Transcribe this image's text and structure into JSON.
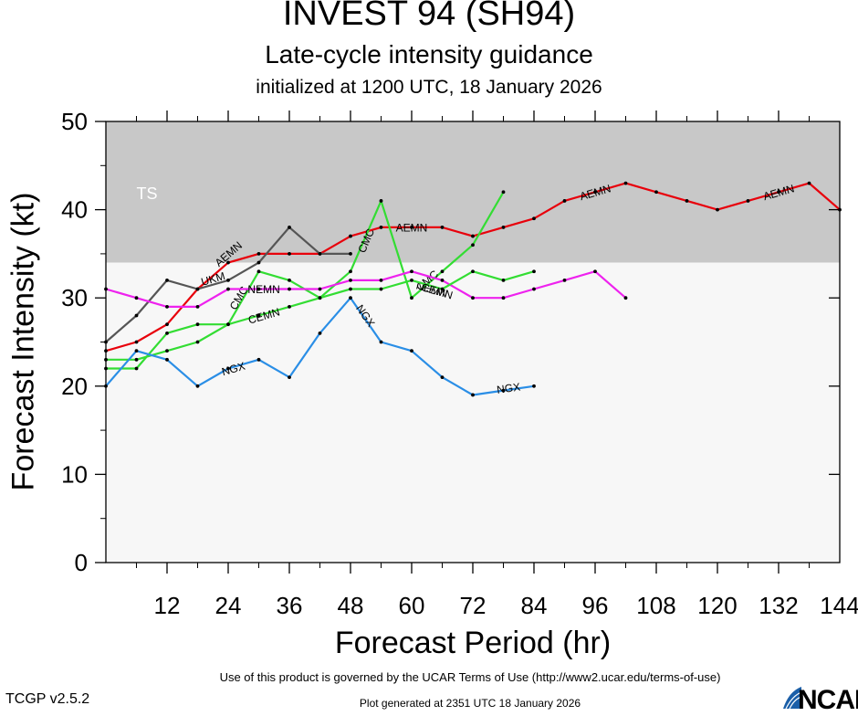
{
  "header": {
    "title": "INVEST 94 (SH94)",
    "subtitle": "Late-cycle intensity guidance",
    "init": "initialized at 1200 UTC, 18 January 2026"
  },
  "footer": {
    "terms": "Use of this product is governed by the UCAR Terms of Use (http://www2.ucar.edu/terms-of-use)",
    "version": "TCGP v2.5.2",
    "generated": "Plot generated at 2351 UTC   18 January 2026",
    "logo_text": "NCAR"
  },
  "chart_data": {
    "type": "line",
    "xlabel": "Forecast Period (hr)",
    "ylabel": "Forecast Intensity (kt)",
    "xlim": [
      0,
      144
    ],
    "ylim": [
      0,
      50
    ],
    "xticks": [
      12,
      24,
      36,
      48,
      60,
      72,
      84,
      96,
      108,
      120,
      132,
      144
    ],
    "yticks": [
      0,
      10,
      20,
      30,
      40,
      50
    ],
    "bands": [
      {
        "label": "TS",
        "from": 34,
        "to": 50,
        "color": "#c8c8c8"
      },
      {
        "label": "",
        "from": 0,
        "to": 34,
        "color": "#f7f7f7"
      }
    ],
    "series": [
      {
        "name": "AEMN",
        "color": "#e8000b",
        "x": [
          0,
          6,
          12,
          18,
          24,
          30,
          36,
          42,
          48,
          54,
          60,
          66,
          72,
          78,
          84,
          90,
          96,
          102,
          108,
          114,
          120,
          126,
          132,
          138,
          144
        ],
        "y": [
          24,
          25,
          27,
          31,
          34,
          35,
          35,
          35,
          37,
          38,
          38,
          38,
          37,
          38,
          39,
          41,
          42,
          43,
          42,
          41,
          40,
          41,
          42,
          43,
          40
        ],
        "labels": [
          {
            "x": 24,
            "y": 35
          },
          {
            "x": 60,
            "y": 38
          },
          {
            "x": 96,
            "y": 42
          },
          {
            "x": 132,
            "y": 42
          }
        ]
      },
      {
        "name": "UKM",
        "color": "#555555",
        "x": [
          0,
          6,
          12,
          18,
          24,
          30,
          36,
          42,
          48
        ],
        "y": [
          25,
          28,
          32,
          31,
          32,
          34,
          38,
          35,
          35
        ],
        "labels": [
          {
            "x": 21,
            "y": 32.2
          }
        ]
      },
      {
        "name": "CMC",
        "color": "#33dd33",
        "x": [
          0,
          6,
          12,
          18,
          24,
          30,
          36,
          42,
          48,
          54,
          60,
          66,
          72,
          78
        ],
        "y": [
          22,
          22,
          26,
          27,
          27,
          33,
          32,
          30,
          33,
          41,
          30,
          33,
          36,
          42
        ],
        "labels": [
          {
            "x": 26,
            "y": 30
          },
          {
            "x": 51,
            "y": 36.5
          },
          {
            "x": 63,
            "y": 32
          }
        ]
      },
      {
        "name": "NEMN",
        "color": "#ee22ee",
        "x": [
          0,
          6,
          12,
          18,
          24,
          30,
          36,
          42,
          48,
          54,
          60,
          66,
          72,
          78,
          84,
          90,
          96,
          102
        ],
        "y": [
          31,
          30,
          29,
          29,
          31,
          31,
          31,
          31,
          32,
          32,
          33,
          32,
          30,
          30,
          31,
          32,
          33,
          30
        ],
        "labels": [
          {
            "x": 31,
            "y": 31
          },
          {
            "x": 64,
            "y": 31
          }
        ]
      },
      {
        "name": "CEMN",
        "color": "#33dd33",
        "x": [
          0,
          6,
          12,
          18,
          24,
          30,
          36,
          42,
          48,
          54,
          60,
          66,
          72,
          78,
          84
        ],
        "y": [
          23,
          23,
          24,
          25,
          27,
          28,
          29,
          30,
          31,
          31,
          32,
          31,
          33,
          32,
          33
        ],
        "labels": [
          {
            "x": 31,
            "y": 28
          },
          {
            "x": 65,
            "y": 30.8
          }
        ]
      },
      {
        "name": "NGX",
        "color": "#2a8ee6",
        "x": [
          0,
          6,
          12,
          18,
          24,
          30,
          36,
          42,
          48,
          54,
          60,
          66,
          72,
          78,
          84
        ],
        "y": [
          20,
          24,
          23,
          20,
          22,
          23,
          21,
          26,
          30,
          25,
          24,
          21,
          19,
          19.5,
          20
        ],
        "labels": [
          {
            "x": 25,
            "y": 22
          },
          {
            "x": 51,
            "y": 28
          },
          {
            "x": 79,
            "y": 19.8
          }
        ]
      }
    ]
  }
}
